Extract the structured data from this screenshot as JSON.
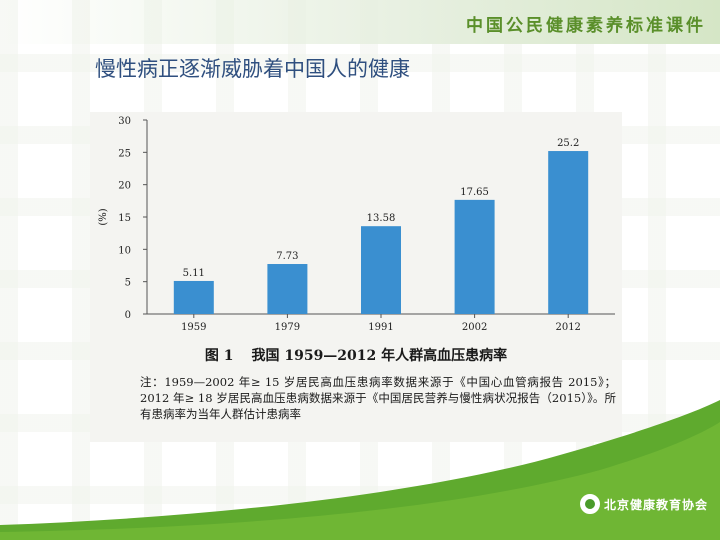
{
  "header": {
    "brand_title": "中国公民健康素养标准课件"
  },
  "slide": {
    "title": "慢性病正逐渐威胁着中国人的健康"
  },
  "figure": {
    "caption_number": "图 1",
    "caption_text": "我国 1959—2012 年人群高血压患病率",
    "note_line1": "注：1959—2002 年≥ 15 岁居民高血压患病率数据来源于《中国心血管病报告 2015》；2012 年≥ 18 岁居民高血压患病数据来源于《中国居民营养与慢性病状况报告（2015）》。所有患病率为当年人群估计患病率"
  },
  "chart_data": {
    "type": "bar",
    "categories": [
      "1959",
      "1979",
      "1991",
      "2002",
      "2012"
    ],
    "values": [
      5.11,
      7.73,
      13.58,
      17.65,
      25.2
    ],
    "value_labels": [
      "5.11",
      "7.73",
      "13.58",
      "17.65",
      "25.2"
    ],
    "title": "",
    "xlabel": "",
    "ylabel": "(%)",
    "ylim": [
      0,
      30
    ],
    "yticks": [
      0,
      5,
      10,
      15,
      20,
      25,
      30
    ],
    "bar_color": "#3a8fd0",
    "grid": false,
    "legend": "none"
  },
  "footer": {
    "org_name": "北京健康教育协会"
  },
  "colors": {
    "brand_green": "#5a8f2a",
    "title_blue": "#2f4f7f",
    "wave_green": "#5faa2e"
  }
}
